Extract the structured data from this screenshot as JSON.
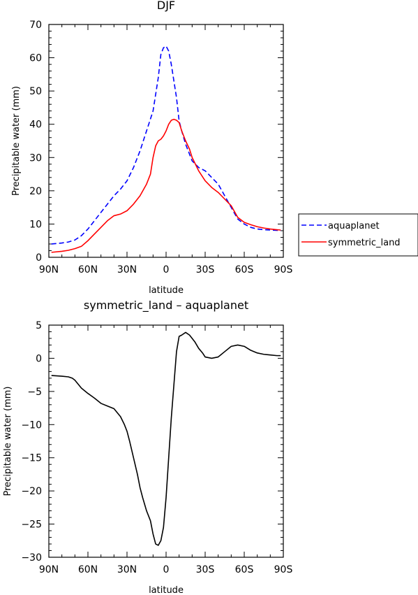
{
  "chart_data": [
    {
      "type": "line",
      "title": "DJF",
      "xlabel": "latitude",
      "ylabel": "Precipitable water  (mm)",
      "x_ticks": [
        "90N",
        "60N",
        "30N",
        "0",
        "30S",
        "60S",
        "90S"
      ],
      "y_ticks": [
        "0",
        "10",
        "20",
        "30",
        "40",
        "50",
        "60",
        "70"
      ],
      "xlim": [
        -90,
        90
      ],
      "ylim": [
        0,
        70
      ],
      "legend_position": "right",
      "series": [
        {
          "name": "aquaplanet",
          "color": "#0000ff",
          "style": "dashed",
          "x": [
            -88,
            -80,
            -75,
            -70,
            -65,
            -60,
            -55,
            -50,
            -45,
            -40,
            -35,
            -30,
            -25,
            -20,
            -15,
            -10,
            -8,
            -6,
            -4,
            -2,
            0,
            2,
            4,
            6,
            8,
            10,
            12,
            15,
            18,
            20,
            25,
            30,
            35,
            40,
            45,
            50,
            55,
            60,
            65,
            70,
            75,
            80,
            85,
            88
          ],
          "y": [
            4,
            4.3,
            4.6,
            5.2,
            6.5,
            8.5,
            11,
            13.5,
            16,
            18.5,
            20.5,
            23,
            27,
            32,
            38,
            44,
            49,
            54,
            61,
            63,
            63.5,
            62,
            58,
            53,
            48,
            41,
            38,
            34,
            31,
            29,
            27,
            26,
            24,
            22,
            18.5,
            15,
            11.5,
            10,
            9,
            8.5,
            8.3,
            8.2,
            8.1,
            8
          ]
        },
        {
          "name": "symmetric_land",
          "color": "#ff0000",
          "style": "solid",
          "x": [
            -88,
            -80,
            -75,
            -70,
            -65,
            -60,
            -55,
            -50,
            -45,
            -40,
            -35,
            -30,
            -25,
            -20,
            -15,
            -12,
            -10,
            -8,
            -6,
            -4,
            -2,
            0,
            2,
            4,
            6,
            8,
            10,
            12,
            15,
            18,
            20,
            25,
            30,
            35,
            40,
            45,
            50,
            55,
            60,
            65,
            70,
            75,
            80,
            85,
            88
          ],
          "y": [
            1.5,
            1.8,
            2.1,
            2.6,
            3.3,
            5,
            7,
            9,
            11,
            12.5,
            13,
            14,
            16,
            18.5,
            22,
            25,
            30,
            33.5,
            35,
            35.5,
            36.5,
            38,
            40,
            41.2,
            41.5,
            41.2,
            40.5,
            38,
            35,
            32.5,
            30,
            26,
            23,
            21,
            19.5,
            17.5,
            15.5,
            12,
            10.5,
            9.8,
            9.2,
            8.8,
            8.5,
            8.3,
            8.2
          ]
        }
      ]
    },
    {
      "type": "line",
      "title": "symmetric_land – aquaplanet",
      "xlabel": "latitude",
      "ylabel": "Precipitable water  (mm)",
      "x_ticks": [
        "90N",
        "60N",
        "30N",
        "0",
        "30S",
        "60S",
        "90S"
      ],
      "y_ticks": [
        "5",
        "0",
        "−5",
        "−10",
        "−15",
        "−20",
        "−25",
        "−30"
      ],
      "xlim": [
        -90,
        90
      ],
      "ylim": [
        -30,
        5
      ],
      "series": [
        {
          "color": "#000000",
          "style": "solid",
          "x": [
            -88,
            -80,
            -75,
            -72,
            -70,
            -65,
            -60,
            -55,
            -50,
            -45,
            -40,
            -35,
            -32,
            -30,
            -28,
            -25,
            -22,
            -20,
            -18,
            -15,
            -12,
            -10,
            -8,
            -6,
            -4,
            -2,
            0,
            2,
            4,
            6,
            8,
            10,
            12,
            15,
            18,
            20,
            22,
            25,
            28,
            30,
            35,
            40,
            45,
            50,
            55,
            60,
            65,
            70,
            75,
            80,
            85,
            88
          ],
          "y": [
            -2.6,
            -2.7,
            -2.8,
            -3.0,
            -3.3,
            -4.5,
            -5.3,
            -6.0,
            -6.8,
            -7.2,
            -7.6,
            -8.8,
            -10,
            -11,
            -12.5,
            -15,
            -17.5,
            -19.5,
            -21,
            -23,
            -24.5,
            -26.5,
            -28,
            -28.2,
            -27.5,
            -25.5,
            -21,
            -15,
            -9,
            -4,
            1,
            3.3,
            3.5,
            3.9,
            3.5,
            3.0,
            2.5,
            1.5,
            0.8,
            0.2,
            0.0,
            0.2,
            1.0,
            1.8,
            2.0,
            1.8,
            1.2,
            0.8,
            0.6,
            0.5,
            0.4,
            0.4
          ]
        }
      ]
    }
  ]
}
